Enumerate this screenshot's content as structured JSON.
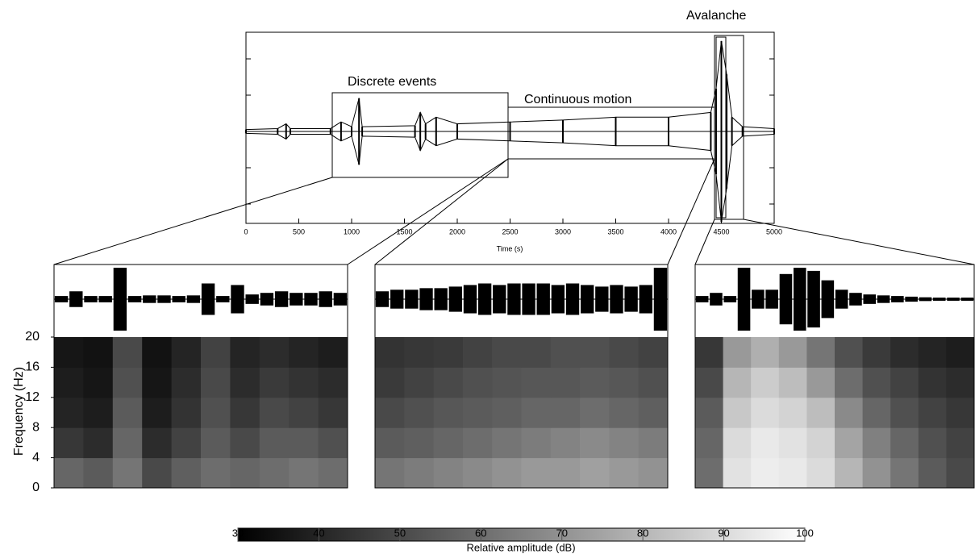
{
  "chart_data": [
    {
      "type": "line",
      "xlabel": "Time (s)",
      "xlim": [
        0,
        5000
      ],
      "xticks": [
        0,
        500,
        1000,
        1500,
        2000,
        2500,
        3000,
        3500,
        4000,
        4500,
        5000
      ],
      "ylim": [
        -1,
        1
      ],
      "annotations": [
        "Avalanche",
        "Discrete events",
        "Continuous motion"
      ],
      "color": "#000000",
      "x": [
        0,
        300,
        380,
        420,
        800,
        900,
        1000,
        1070,
        1100,
        1600,
        1650,
        1700,
        1800,
        2000,
        2500,
        3000,
        3500,
        4000,
        4400,
        4450,
        4500,
        4550,
        4600,
        4700,
        5000
      ],
      "values": [
        0.02,
        0.03,
        0.08,
        0.03,
        0.03,
        0.1,
        0.05,
        0.35,
        0.05,
        0.06,
        0.2,
        0.08,
        0.15,
        0.08,
        0.1,
        0.12,
        0.15,
        0.15,
        0.2,
        0.45,
        0.95,
        0.6,
        0.15,
        0.05,
        0.03
      ]
    },
    {
      "type": "spectrogram",
      "ylabel": "Frequency (Hz)",
      "ylim": [
        0,
        20
      ],
      "yticks": [
        0,
        4,
        8,
        12,
        16,
        20
      ],
      "ybins": [
        0,
        4,
        8,
        12,
        16,
        20
      ],
      "waveform_ylim": [
        -1,
        1
      ],
      "waveform": [
        0.1,
        0.25,
        0.1,
        0.1,
        1,
        0.1,
        0.12,
        0.12,
        0.1,
        0.12,
        0.5,
        0.1,
        0.45,
        0.15,
        0.2,
        0.25,
        0.2,
        0.2,
        0.25,
        0.2
      ],
      "z": [
        [
          58,
          55,
          62,
          50,
          56,
          60,
          58,
          60,
          62,
          60
        ],
        [
          45,
          42,
          58,
          42,
          48,
          55,
          50,
          55,
          55,
          52
        ],
        [
          40,
          38,
          55,
          38,
          44,
          52,
          45,
          50,
          48,
          45
        ],
        [
          38,
          36,
          52,
          36,
          42,
          50,
          42,
          46,
          44,
          42
        ],
        [
          36,
          35,
          50,
          35,
          40,
          48,
          40,
          42,
          40,
          38
        ]
      ]
    },
    {
      "type": "spectrogram",
      "ylim": [
        0,
        20
      ],
      "ybins": [
        0,
        4,
        8,
        12,
        16,
        20
      ],
      "waveform_ylim": [
        -1,
        1
      ],
      "waveform": [
        0.25,
        0.3,
        0.3,
        0.35,
        0.35,
        0.4,
        0.45,
        0.5,
        0.45,
        0.5,
        0.5,
        0.5,
        0.45,
        0.5,
        0.45,
        0.4,
        0.45,
        0.4,
        0.45,
        1
      ],
      "z": [
        [
          62,
          64,
          66,
          68,
          70,
          72,
          72,
          74,
          72,
          70
        ],
        [
          55,
          56,
          58,
          60,
          62,
          64,
          66,
          68,
          66,
          64
        ],
        [
          50,
          52,
          54,
          55,
          56,
          58,
          58,
          60,
          58,
          56
        ],
        [
          46,
          48,
          50,
          52,
          53,
          54,
          54,
          55,
          54,
          52
        ],
        [
          44,
          45,
          46,
          48,
          50,
          50,
          52,
          52,
          50,
          48
        ]
      ]
    },
    {
      "type": "spectrogram",
      "ylim": [
        0,
        20
      ],
      "ybins": [
        0,
        4,
        8,
        12,
        16,
        20
      ],
      "waveform_ylim": [
        -1,
        1
      ],
      "waveform": [
        0.1,
        0.2,
        0.1,
        1,
        0.3,
        0.3,
        0.8,
        1,
        0.9,
        0.6,
        0.3,
        0.2,
        0.15,
        0.12,
        0.1,
        0.08,
        0.06,
        0.05,
        0.05,
        0.05
      ],
      "z": [
        [
          60,
          92,
          95,
          94,
          90,
          80,
          70,
          62,
          55,
          50
        ],
        [
          58,
          90,
          94,
          92,
          88,
          75,
          65,
          58,
          52,
          48
        ],
        [
          55,
          85,
          90,
          88,
          82,
          68,
          58,
          52,
          48,
          45
        ],
        [
          50,
          80,
          86,
          82,
          72,
          60,
          52,
          48,
          44,
          42
        ],
        [
          45,
          72,
          78,
          72,
          62,
          52,
          46,
          42,
          40,
          38
        ]
      ]
    },
    {
      "type": "colorbar",
      "xlim": [
        30,
        100
      ],
      "xticks": [
        30,
        40,
        50,
        60,
        70,
        80,
        90,
        100
      ],
      "xlabel": "Relative amplitude (dB)"
    }
  ]
}
